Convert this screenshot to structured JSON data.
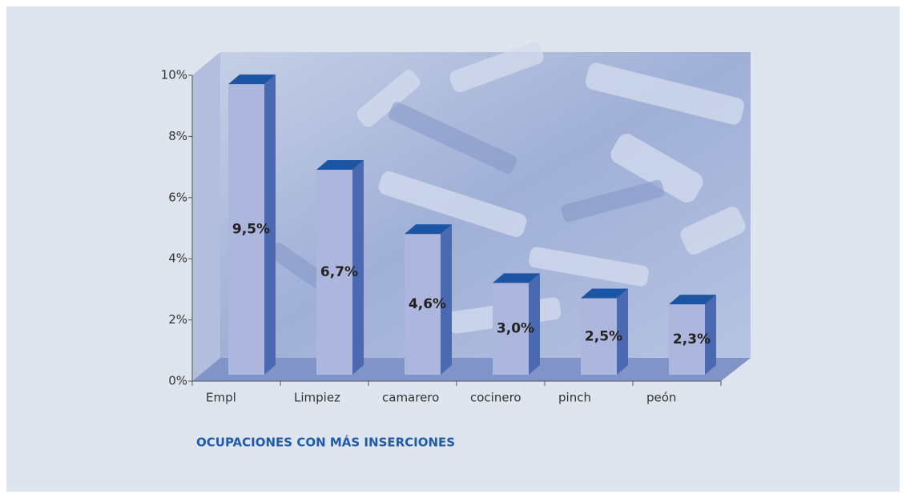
{
  "chart_data": {
    "type": "bar3d",
    "title": "OCUPACIONES CON MÁS INSERCIONES",
    "categories": [
      "Empl",
      "Limpiez",
      "camarero",
      "cocinero",
      "pinch",
      "peón"
    ],
    "values": [
      9.5,
      6.7,
      4.6,
      3.0,
      2.5,
      2.3
    ],
    "value_labels": [
      "9,5%",
      "6,7%",
      "4,6%",
      "3,0%",
      "2,5%",
      "2,3%"
    ],
    "ylim": [
      0,
      10
    ],
    "yticks": [
      {
        "value": 0,
        "label": "0%"
      },
      {
        "value": 2,
        "label": "2%"
      },
      {
        "value": 4,
        "label": "4%"
      },
      {
        "value": 6,
        "label": "6%"
      },
      {
        "value": 8,
        "label": "8%"
      },
      {
        "value": 10,
        "label": "10%"
      }
    ],
    "colors": {
      "front": "#adb7de",
      "side": "#4a69b0",
      "top": "#1b55a3"
    }
  }
}
